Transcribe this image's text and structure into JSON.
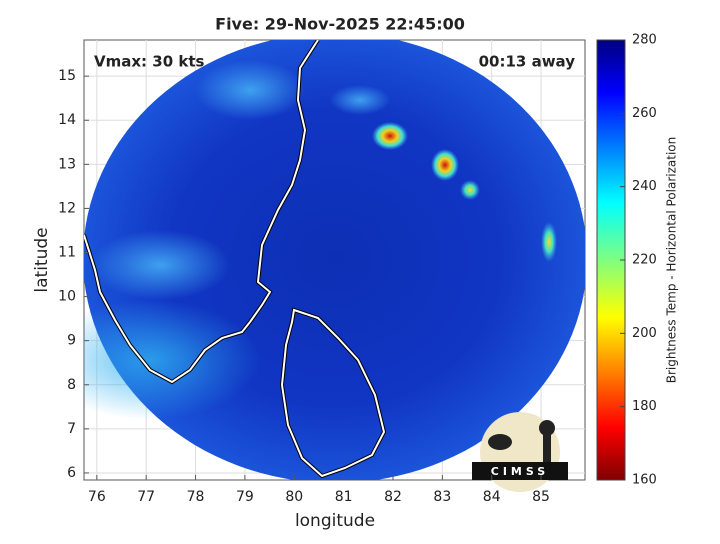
{
  "chart_data": {
    "type": "map",
    "title": "Five: 29-Nov-2025 22:45:00",
    "annotations": [
      "Vmax: 30 kts",
      "00:13 away"
    ],
    "xlabel": "longitude",
    "ylabel": "latitude",
    "xlim": [
      75.74,
      85.89
    ],
    "xticks": [
      76,
      77,
      78,
      79,
      80,
      81,
      82,
      83,
      84,
      85
    ],
    "ylim": [
      5.84,
      15.82
    ],
    "yticks": [
      6,
      7,
      8,
      9,
      10,
      11,
      12,
      13,
      14,
      15
    ],
    "grid": true,
    "colorbar": {
      "label": "Brightness Temp - Horizontal Polarization",
      "lim": [
        160,
        280
      ],
      "ticks": [
        160,
        180,
        200,
        220,
        240,
        260,
        280
      ]
    },
    "logo": "CIMSS"
  }
}
